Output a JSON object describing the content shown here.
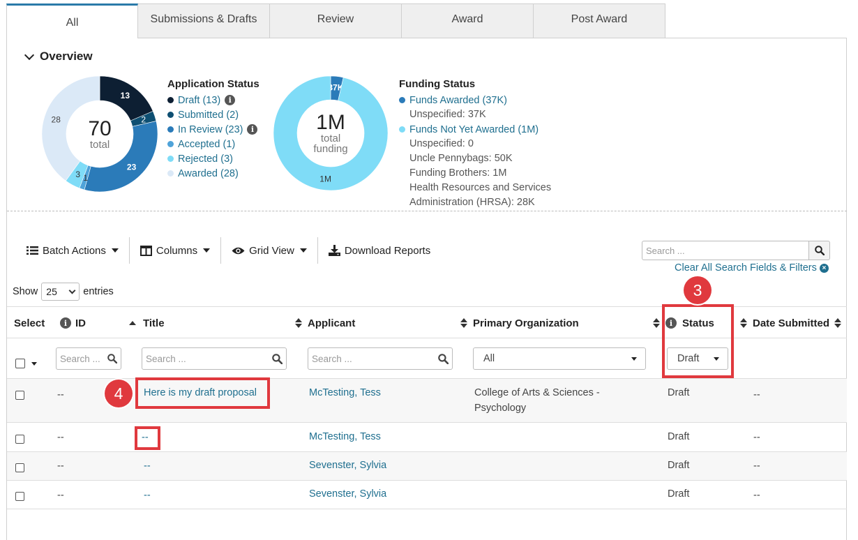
{
  "tabs": [
    {
      "label": "All",
      "active": true
    },
    {
      "label": "Submissions & Drafts"
    },
    {
      "label": "Review"
    },
    {
      "label": "Award"
    },
    {
      "label": "Post Award"
    }
  ],
  "overview": {
    "title": "Overview",
    "app_status": {
      "title": "Application Status",
      "center_value": "70",
      "center_label": "total",
      "segments": [
        {
          "label": "Draft (13)",
          "value": 13,
          "color": "#0d1f33",
          "slice_label": "13",
          "info": true
        },
        {
          "label": "Submitted (2)",
          "value": 2,
          "color": "#0e4f72",
          "slice_label": "2"
        },
        {
          "label": "In Review (23)",
          "value": 23,
          "color": "#2b7bb9",
          "slice_label": "23",
          "info": true
        },
        {
          "label": "Accepted (1)",
          "value": 1,
          "color": "#4fa3d9",
          "slice_label": "1"
        },
        {
          "label": "Rejected (3)",
          "value": 3,
          "color": "#7fdcf7",
          "slice_label": "3"
        },
        {
          "label": "Awarded (28)",
          "value": 28,
          "color": "#dbe9f7",
          "slice_label": "28"
        }
      ]
    },
    "funding_status": {
      "title": "Funding Status",
      "center_value": "1M",
      "center_label_1": "total",
      "center_label_2": "funding",
      "segments": [
        {
          "label": "Funds Awarded (37K)",
          "value": 37,
          "color": "#2b7bb9",
          "slice_label": "37K"
        },
        {
          "label": "Funds Not Yet Awarded (1M)",
          "value": 1000,
          "color": "#7fdcf7",
          "slice_label": "1M"
        }
      ],
      "awarded_details": [
        "Unspecified: 37K"
      ],
      "not_awarded_details": [
        "Unspecified: 0",
        "Uncle Pennybags: 50K",
        "Funding Brothers: 1M",
        "Health Resources and Services",
        "Administration (HRSA): 28K"
      ]
    }
  },
  "toolbar": {
    "batch_actions": "Batch Actions",
    "columns": "Columns",
    "grid_view": "Grid View",
    "download_reports": "Download Reports"
  },
  "search": {
    "placeholder": "Search ...",
    "clear_link": "Clear All Search Fields & Filters"
  },
  "entries": {
    "show_label": "Show",
    "value": "25",
    "entries_label": "entries"
  },
  "table": {
    "headers": {
      "select": "Select",
      "id": "ID",
      "title": "Title",
      "applicant": "Applicant",
      "primary_org": "Primary Organization",
      "status": "Status",
      "date_submitted": "Date Submitted"
    },
    "filters": {
      "id_placeholder": "Search ...",
      "title_placeholder": "Search ...",
      "applicant_placeholder": "Search ...",
      "org_value": "All",
      "status_value": "Draft"
    },
    "rows": [
      {
        "id": "--",
        "title": "Here is my draft proposal",
        "applicant": "McTesting, Tess",
        "org_line1": "College of Arts & Sciences -",
        "org_line2": "Psychology",
        "status": "Draft",
        "date": "--"
      },
      {
        "id": "--",
        "title": "--",
        "applicant": "McTesting, Tess",
        "org_line1": "",
        "org_line2": "",
        "status": "Draft",
        "date": "--"
      },
      {
        "id": "--",
        "title": "--",
        "applicant": "Sevenster, Sylvia",
        "org_line1": "",
        "org_line2": "",
        "status": "Draft",
        "date": "--"
      },
      {
        "id": "--",
        "title": "--",
        "applicant": "Sevenster, Sylvia",
        "org_line1": "",
        "org_line2": "",
        "status": "Draft",
        "date": "--"
      }
    ]
  },
  "annotations": {
    "badge_3": "3",
    "badge_4": "4",
    "highlight_color": "#e0393e"
  }
}
